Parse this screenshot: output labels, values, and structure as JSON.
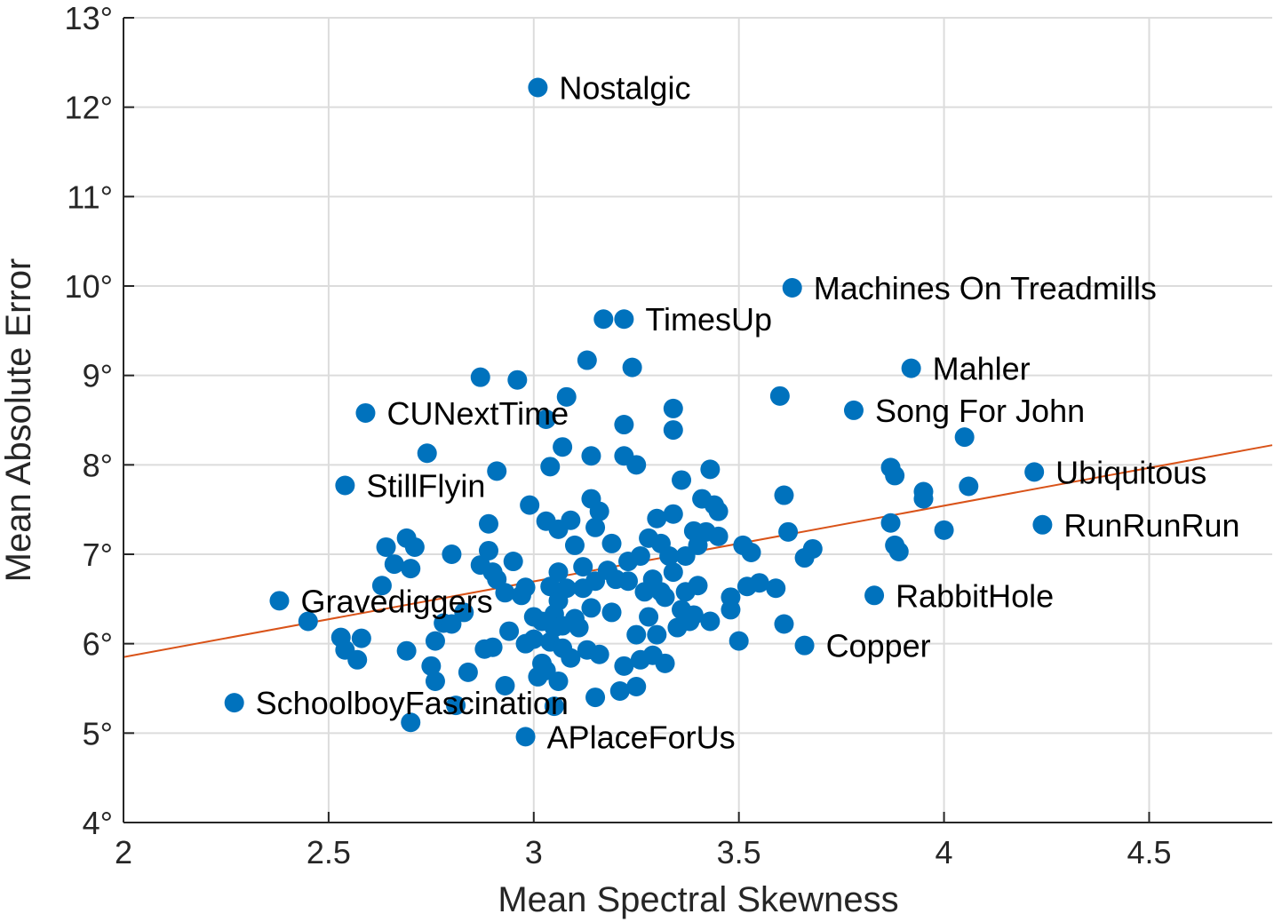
{
  "chart_data": {
    "type": "scatter",
    "title": "",
    "xlabel": "Mean Spectral Skewness",
    "ylabel": "Mean Absolute Error",
    "xlim": [
      2,
      4.8
    ],
    "ylim": [
      4,
      13
    ],
    "xticks": [
      2,
      2.5,
      3,
      3.5,
      4,
      4.5
    ],
    "xtick_labels": [
      "2",
      "2.5",
      "3",
      "3.5",
      "4",
      "4.5"
    ],
    "yticks": [
      4,
      5,
      6,
      7,
      8,
      9,
      10,
      11,
      12,
      13
    ],
    "ytick_labels": [
      "4°",
      "5°",
      "6°",
      "7°",
      "8°",
      "9°",
      "10°",
      "11°",
      "12°",
      "13°"
    ],
    "grid": true,
    "point_color": "#0072BD",
    "fit_color": "#D95319",
    "fit_line": {
      "x": [
        2,
        4.8
      ],
      "y": [
        5.85,
        8.22
      ]
    },
    "labeled_points": [
      {
        "x": 3.01,
        "y": 12.22,
        "label": "Nostalgic"
      },
      {
        "x": 3.63,
        "y": 9.98,
        "label": "Machines On Treadmills"
      },
      {
        "x": 3.22,
        "y": 9.63,
        "label": "TimesUp"
      },
      {
        "x": 3.92,
        "y": 9.08,
        "label": "Mahler"
      },
      {
        "x": 2.59,
        "y": 8.58,
        "label": "CUNextTime"
      },
      {
        "x": 3.78,
        "y": 8.61,
        "label": "Song For John"
      },
      {
        "x": 4.22,
        "y": 7.92,
        "label": "Ubiquitous"
      },
      {
        "x": 2.54,
        "y": 7.77,
        "label": "StillFlyin"
      },
      {
        "x": 4.24,
        "y": 7.33,
        "label": "RunRunRun"
      },
      {
        "x": 2.38,
        "y": 6.48,
        "label": "Gravediggers"
      },
      {
        "x": 3.83,
        "y": 6.54,
        "label": "RabbitHole"
      },
      {
        "x": 3.66,
        "y": 5.98,
        "label": "Copper"
      },
      {
        "x": 2.27,
        "y": 5.34,
        "label": "SchoolboyFascination"
      },
      {
        "x": 2.98,
        "y": 4.96,
        "label": "APlaceForUs"
      }
    ],
    "points": [
      [
        2.45,
        6.25
      ],
      [
        2.53,
        6.07
      ],
      [
        2.54,
        5.93
      ],
      [
        2.57,
        5.82
      ],
      [
        2.58,
        6.06
      ],
      [
        2.63,
        6.65
      ],
      [
        2.64,
        7.08
      ],
      [
        2.66,
        6.89
      ],
      [
        2.69,
        7.18
      ],
      [
        2.7,
        6.84
      ],
      [
        2.71,
        7.08
      ],
      [
        2.69,
        5.92
      ],
      [
        2.7,
        5.12
      ],
      [
        2.74,
        8.13
      ],
      [
        2.75,
        5.75
      ],
      [
        2.76,
        5.58
      ],
      [
        2.76,
        6.03
      ],
      [
        2.78,
        6.23
      ],
      [
        2.8,
        6.22
      ],
      [
        2.8,
        7.0
      ],
      [
        2.81,
        5.31
      ],
      [
        2.83,
        6.35
      ],
      [
        2.84,
        5.68
      ],
      [
        2.87,
        8.98
      ],
      [
        2.87,
        6.88
      ],
      [
        2.88,
        5.94
      ],
      [
        2.89,
        7.04
      ],
      [
        2.9,
        6.8
      ],
      [
        2.89,
        7.34
      ],
      [
        2.9,
        5.96
      ],
      [
        2.91,
        6.72
      ],
      [
        2.91,
        7.93
      ],
      [
        2.93,
        6.57
      ],
      [
        2.93,
        5.53
      ],
      [
        2.94,
        6.14
      ],
      [
        2.95,
        6.92
      ],
      [
        2.96,
        8.95
      ],
      [
        2.97,
        6.54
      ],
      [
        2.98,
        6.63
      ],
      [
        2.98,
        6.0
      ],
      [
        2.99,
        7.55
      ],
      [
        3.0,
        6.3
      ],
      [
        3.0,
        6.05
      ],
      [
        3.01,
        5.63
      ],
      [
        3.02,
        5.78
      ],
      [
        3.02,
        6.25
      ],
      [
        3.03,
        7.37
      ],
      [
        3.03,
        5.7
      ],
      [
        3.03,
        8.51
      ],
      [
        3.04,
        6.02
      ],
      [
        3.04,
        7.98
      ],
      [
        3.04,
        6.64
      ],
      [
        3.05,
        6.33
      ],
      [
        3.05,
        5.3
      ],
      [
        3.05,
        6.18
      ],
      [
        3.06,
        6.8
      ],
      [
        3.06,
        7.28
      ],
      [
        3.06,
        5.58
      ],
      [
        3.06,
        6.48
      ],
      [
        3.07,
        6.2
      ],
      [
        3.07,
        8.2
      ],
      [
        3.07,
        5.95
      ],
      [
        3.08,
        8.76
      ],
      [
        3.08,
        6.62
      ],
      [
        3.09,
        7.38
      ],
      [
        3.09,
        5.84
      ],
      [
        3.1,
        7.1
      ],
      [
        3.1,
        6.28
      ],
      [
        3.11,
        6.18
      ],
      [
        3.12,
        6.86
      ],
      [
        3.12,
        6.62
      ],
      [
        3.13,
        9.17
      ],
      [
        3.13,
        5.93
      ],
      [
        3.14,
        6.4
      ],
      [
        3.14,
        7.62
      ],
      [
        3.14,
        8.1
      ],
      [
        3.15,
        7.3
      ],
      [
        3.15,
        6.7
      ],
      [
        3.15,
        5.4
      ],
      [
        3.16,
        7.48
      ],
      [
        3.16,
        5.88
      ],
      [
        3.17,
        9.63
      ],
      [
        3.18,
        6.82
      ],
      [
        3.19,
        6.35
      ],
      [
        3.19,
        7.12
      ],
      [
        3.2,
        6.72
      ],
      [
        3.21,
        5.47
      ],
      [
        3.22,
        8.45
      ],
      [
        3.22,
        8.1
      ],
      [
        3.22,
        5.75
      ],
      [
        3.23,
        6.7
      ],
      [
        3.23,
        6.92
      ],
      [
        3.24,
        9.09
      ],
      [
        3.25,
        5.52
      ],
      [
        3.25,
        8.0
      ],
      [
        3.25,
        6.1
      ],
      [
        3.26,
        5.82
      ],
      [
        3.26,
        6.98
      ],
      [
        3.27,
        6.58
      ],
      [
        3.28,
        7.18
      ],
      [
        3.28,
        6.3
      ],
      [
        3.29,
        6.72
      ],
      [
        3.29,
        5.87
      ],
      [
        3.3,
        7.4
      ],
      [
        3.3,
        6.1
      ],
      [
        3.31,
        6.58
      ],
      [
        3.31,
        7.12
      ],
      [
        3.32,
        5.78
      ],
      [
        3.32,
        6.52
      ],
      [
        3.33,
        6.98
      ],
      [
        3.34,
        8.63
      ],
      [
        3.34,
        8.39
      ],
      [
        3.34,
        6.8
      ],
      [
        3.34,
        7.45
      ],
      [
        3.35,
        6.18
      ],
      [
        3.36,
        6.38
      ],
      [
        3.36,
        7.83
      ],
      [
        3.37,
        6.58
      ],
      [
        3.37,
        6.98
      ],
      [
        3.38,
        6.25
      ],
      [
        3.39,
        7.26
      ],
      [
        3.39,
        6.32
      ],
      [
        3.4,
        7.1
      ],
      [
        3.4,
        6.65
      ],
      [
        3.41,
        7.62
      ],
      [
        3.42,
        7.25
      ],
      [
        3.43,
        6.25
      ],
      [
        3.43,
        7.95
      ],
      [
        3.44,
        7.55
      ],
      [
        3.45,
        7.48
      ],
      [
        3.45,
        7.2
      ],
      [
        3.48,
        6.38
      ],
      [
        3.48,
        6.52
      ],
      [
        3.5,
        6.03
      ],
      [
        3.51,
        7.1
      ],
      [
        3.52,
        6.64
      ],
      [
        3.53,
        7.02
      ],
      [
        3.55,
        6.68
      ],
      [
        3.59,
        6.62
      ],
      [
        3.6,
        8.77
      ],
      [
        3.61,
        7.66
      ],
      [
        3.61,
        6.22
      ],
      [
        3.62,
        7.25
      ],
      [
        3.66,
        6.96
      ],
      [
        3.68,
        7.06
      ],
      [
        3.87,
        7.97
      ],
      [
        3.87,
        7.35
      ],
      [
        3.88,
        7.88
      ],
      [
        3.88,
        7.1
      ],
      [
        3.89,
        7.03
      ],
      [
        3.95,
        7.7
      ],
      [
        3.95,
        7.62
      ],
      [
        4.0,
        7.27
      ],
      [
        4.05,
        8.31
      ],
      [
        4.06,
        7.76
      ]
    ]
  }
}
